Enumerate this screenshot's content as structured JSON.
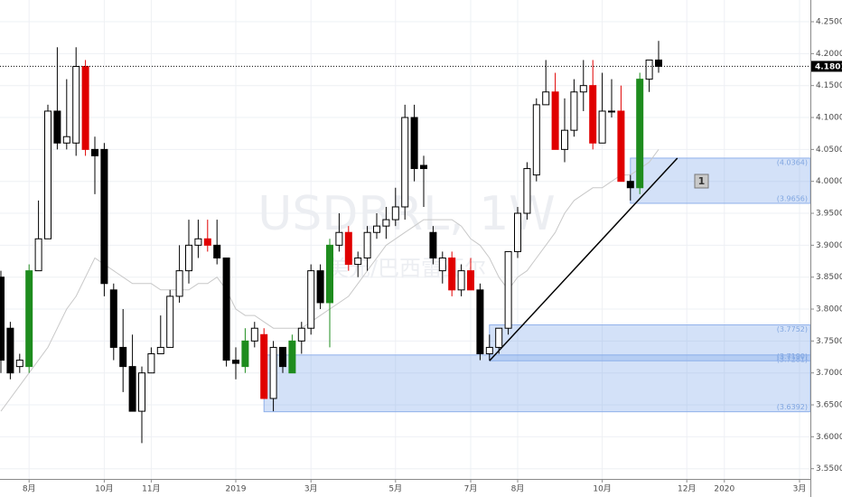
{
  "chart_data": {
    "type": "candlestick",
    "watermark": "USDBRL, 1W",
    "watermark_subtitle": "美元/巴西雷亚尔",
    "categories": [
      null,
      null,
      null,
      "8月",
      null,
      null,
      null,
      null,
      null,
      null,
      null,
      "10月",
      null,
      null,
      null,
      null,
      "11月",
      null,
      null,
      null,
      null,
      null,
      null,
      null,
      null,
      "2019",
      null,
      null,
      null,
      null,
      null,
      null,
      null,
      "3月",
      null,
      null,
      null,
      null,
      null,
      null,
      null,
      null,
      "5月",
      null,
      null,
      null,
      null,
      null,
      null,
      null,
      "7月",
      null,
      null,
      null,
      null,
      "8月",
      null,
      null,
      null,
      null,
      null,
      null,
      null,
      null,
      "10月",
      null,
      null,
      null,
      null,
      null,
      null,
      null,
      null,
      "12月",
      null,
      null,
      null,
      "2020",
      null,
      null,
      null,
      null,
      null,
      null,
      null,
      "3月",
      null
    ],
    "open": [
      3.85,
      3.77,
      3.71,
      3.71,
      3.86,
      3.91,
      4.11,
      4.06,
      4.06,
      4.18,
      4.05,
      4.05,
      3.83,
      3.74,
      3.71,
      3.64,
      3.7,
      3.73,
      3.74,
      3.82,
      3.86,
      3.9,
      3.91,
      3.9,
      3.88,
      3.72,
      3.71,
      3.75,
      3.76,
      3.66,
      3.74,
      3.7,
      3.75,
      3.77,
      3.86,
      3.81,
      3.9,
      3.92,
      3.87,
      3.88,
      3.92,
      3.93,
      3.94,
      3.96,
      4.1,
      4.025,
      3.92,
      3.86,
      3.88,
      3.83,
      3.86,
      3.83,
      3.73,
      3.74,
      3.77,
      3.89,
      3.95,
      4.01,
      4.12,
      4.14,
      4.05,
      4.08,
      4.14,
      4.15,
      4.06,
      4.11,
      4.11,
      4.0,
      3.99,
      4.16,
      4.19,
      null,
      null,
      null,
      null,
      null,
      null,
      null,
      null,
      null,
      null,
      null,
      null,
      null,
      null,
      null,
      null
    ],
    "high": [
      3.86,
      3.78,
      3.73,
      3.87,
      3.97,
      4.12,
      4.21,
      4.16,
      4.21,
      4.19,
      4.07,
      4.06,
      3.84,
      3.8,
      3.76,
      3.71,
      3.74,
      3.79,
      3.83,
      3.9,
      3.94,
      3.94,
      3.94,
      3.94,
      3.88,
      3.74,
      3.77,
      3.78,
      3.77,
      3.75,
      3.74,
      3.76,
      3.78,
      3.87,
      3.87,
      3.91,
      3.95,
      3.93,
      3.89,
      3.93,
      3.95,
      3.96,
      3.99,
      4.12,
      4.12,
      4.04,
      3.93,
      3.89,
      3.89,
      3.87,
      3.88,
      3.84,
      3.76,
      3.77,
      3.89,
      3.96,
      4.03,
      4.13,
      4.19,
      4.17,
      4.13,
      4.16,
      4.19,
      4.19,
      4.17,
      4.16,
      4.15,
      4.01,
      4.17,
      4.19,
      4.22,
      null,
      null,
      null,
      null,
      null,
      null,
      null,
      null,
      null,
      null,
      null,
      null,
      null,
      null,
      null,
      null
    ],
    "low": [
      3.7,
      3.69,
      3.7,
      3.7,
      3.86,
      3.91,
      4.05,
      4.05,
      4.04,
      4.04,
      3.98,
      3.82,
      3.72,
      3.67,
      3.64,
      3.59,
      3.7,
      3.73,
      3.74,
      3.81,
      3.84,
      3.88,
      3.89,
      3.87,
      3.71,
      3.69,
      3.7,
      3.74,
      3.66,
      3.64,
      3.7,
      3.7,
      3.73,
      3.76,
      3.8,
      3.74,
      3.89,
      3.86,
      3.85,
      3.86,
      3.91,
      3.91,
      3.93,
      3.94,
      4.0,
      3.96,
      3.87,
      3.84,
      3.82,
      3.82,
      3.83,
      3.72,
      3.72,
      3.73,
      3.76,
      3.88,
      3.94,
      4.0,
      4.12,
      4.05,
      4.03,
      4.07,
      4.11,
      4.05,
      4.06,
      4.1,
      4.0,
      3.97,
      3.98,
      4.14,
      4.17,
      null,
      null,
      null,
      null,
      null,
      null,
      null,
      null,
      null,
      null,
      null,
      null,
      null,
      null,
      null,
      null
    ],
    "close": [
      3.72,
      3.7,
      3.72,
      3.86,
      3.91,
      4.11,
      4.06,
      4.07,
      4.18,
      4.05,
      4.04,
      3.84,
      3.74,
      3.71,
      3.64,
      3.7,
      3.73,
      3.74,
      3.82,
      3.86,
      3.9,
      3.91,
      3.9,
      3.88,
      3.72,
      3.715,
      3.75,
      3.77,
      3.66,
      3.74,
      3.71,
      3.75,
      3.77,
      3.86,
      3.81,
      3.9,
      3.92,
      3.87,
      3.88,
      3.92,
      3.93,
      3.94,
      3.96,
      4.1,
      4.02,
      4.02,
      3.88,
      3.88,
      3.83,
      3.86,
      3.83,
      3.73,
      3.74,
      3.77,
      3.89,
      3.95,
      4.02,
      4.12,
      4.14,
      4.05,
      4.08,
      4.14,
      4.15,
      4.06,
      4.11,
      4.11,
      4.0,
      3.99,
      4.16,
      4.19,
      4.1801,
      null,
      null,
      null,
      null,
      null,
      null,
      null,
      null,
      null,
      null,
      null,
      null,
      null,
      null,
      null,
      null
    ],
    "colors": [
      "#000000",
      "#000000",
      "#ffffff",
      "#1e8c1e",
      "#ffffff",
      "#ffffff",
      "#000000",
      "#ffffff",
      "#ffffff",
      "#e00000",
      "#000000",
      "#000000",
      "#000000",
      "#000000",
      "#000000",
      "#ffffff",
      "#ffffff",
      "#ffffff",
      "#ffffff",
      "#ffffff",
      "#ffffff",
      "#ffffff",
      "#e00000",
      "#000000",
      "#000000",
      "#000000",
      "#1e8c1e",
      "#ffffff",
      "#e00000",
      "#ffffff",
      "#000000",
      "#1e8c1e",
      "#ffffff",
      "#ffffff",
      "#000000",
      "#1e8c1e",
      "#ffffff",
      "#e00000",
      "#ffffff",
      "#ffffff",
      "#ffffff",
      "#ffffff",
      "#ffffff",
      "#ffffff",
      "#000000",
      "#000000",
      "#000000",
      "#ffffff",
      "#e00000",
      "#ffffff",
      "#e00000",
      "#000000",
      "#ffffff",
      "#ffffff",
      "#ffffff",
      "#ffffff",
      "#ffffff",
      "#ffffff",
      "#ffffff",
      "#e00000",
      "#ffffff",
      "#ffffff",
      "#ffffff",
      "#e00000",
      "#ffffff",
      "#ffffff",
      "#e00000",
      "#000000",
      "#1e8c1e",
      "#ffffff",
      "#000000",
      null,
      null,
      null,
      null,
      null,
      null,
      null,
      null,
      null,
      null,
      null,
      null,
      null,
      null,
      null,
      null
    ],
    "ma": [
      3.64,
      3.66,
      3.68,
      3.7,
      3.72,
      3.74,
      3.77,
      3.8,
      3.82,
      3.85,
      3.88,
      3.87,
      3.86,
      3.85,
      3.84,
      3.84,
      3.84,
      3.83,
      3.83,
      3.83,
      3.83,
      3.84,
      3.84,
      3.85,
      3.83,
      3.8,
      3.79,
      3.79,
      3.78,
      3.77,
      3.77,
      3.77,
      3.77,
      3.78,
      3.79,
      3.8,
      3.81,
      3.82,
      3.84,
      3.86,
      3.88,
      3.9,
      3.91,
      3.92,
      3.93,
      3.94,
      3.94,
      3.94,
      3.94,
      3.93,
      3.91,
      3.9,
      3.88,
      3.85,
      3.83,
      3.85,
      3.86,
      3.88,
      3.9,
      3.92,
      3.95,
      3.97,
      3.98,
      3.99,
      3.99,
      4.0,
      4.01,
      4.01,
      4.02,
      4.03,
      4.05,
      null,
      null,
      null,
      null,
      null,
      null,
      null,
      null,
      null,
      null,
      null,
      null,
      null,
      null,
      null,
      null
    ],
    "last_price": 4.1801,
    "zones": [
      {
        "high": 4.0364,
        "low": 3.9656,
        "labels": [
          "(4.0364)",
          "(3.9656)"
        ]
      },
      {
        "high": 3.7281,
        "low": 3.6392,
        "labels": [
          "(3.7281)",
          "(3.6392)"
        ]
      },
      {
        "high": 3.7752,
        "low": 3.719,
        "labels": [
          "(3.7752)",
          "(3.7190)"
        ]
      }
    ],
    "marker": "1",
    "ylim": [
      3.534,
      4.284
    ],
    "yticks": [
      {
        "value": 4.25,
        "label": "4.2500"
      },
      {
        "value": 4.2,
        "label": "4.2000"
      },
      {
        "value": 4.15,
        "label": "4.1500"
      },
      {
        "value": 4.1,
        "label": "4.1000"
      },
      {
        "value": 4.05,
        "label": "4.0500"
      },
      {
        "value": 4.0,
        "label": "4.0000"
      },
      {
        "value": 3.95,
        "label": "3.9500"
      },
      {
        "value": 3.9,
        "label": "3.9000"
      },
      {
        "value": 3.85,
        "label": "3.8500"
      },
      {
        "value": 3.8,
        "label": "3.8000"
      },
      {
        "value": 3.75,
        "label": "3.7500"
      },
      {
        "value": 3.7,
        "label": "3.7000"
      },
      {
        "value": 3.65,
        "label": "3.6500"
      },
      {
        "value": 3.6,
        "label": "3.6000"
      },
      {
        "value": 3.55,
        "label": "3.5500"
      }
    ],
    "grid": true
  }
}
